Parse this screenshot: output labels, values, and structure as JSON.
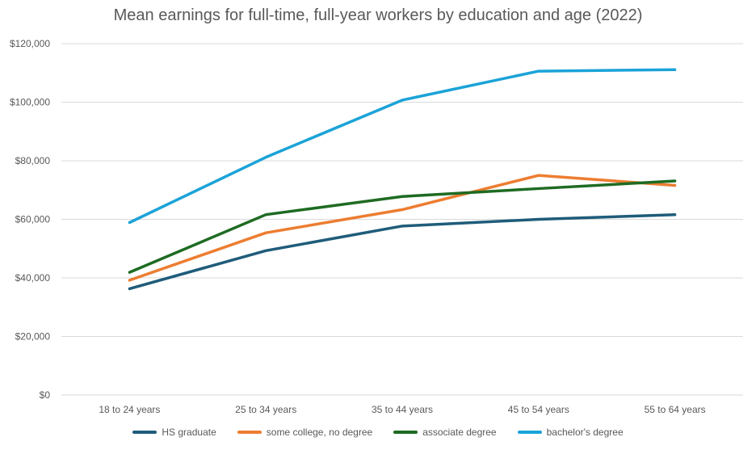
{
  "chart_data": {
    "type": "line",
    "title": "Mean earnings for full-time, full-year workers by education and age (2022)",
    "xlabel": "",
    "ylabel": "",
    "categories": [
      "18 to 24 years",
      "25 to 34 years",
      "35 to 44 years",
      "45 to 54 years",
      "55 to 64 years"
    ],
    "ylim": [
      0,
      120000
    ],
    "yticks": [
      0,
      20000,
      40000,
      60000,
      80000,
      100000,
      120000
    ],
    "ytick_labels": [
      "$0",
      "$20,000",
      "$40,000",
      "$60,000",
      "$80,000",
      "$100,000",
      "$120,000"
    ],
    "grid": "horizontal",
    "legend_position": "bottom",
    "series": [
      {
        "name": "HS graduate",
        "color": "#1f5c7a",
        "values": [
          36300,
          49300,
          57700,
          60000,
          61600
        ]
      },
      {
        "name": "some college, no degree",
        "color": "#ed7d31",
        "values": [
          39200,
          55400,
          63300,
          75000,
          71600
        ]
      },
      {
        "name": "associate degree",
        "color": "#1e6b22",
        "values": [
          41900,
          61600,
          67800,
          70500,
          73100
        ]
      },
      {
        "name": "bachelor's degree",
        "color": "#1ba3d8",
        "values": [
          58900,
          81200,
          100700,
          110600,
          111100
        ]
      }
    ]
  }
}
